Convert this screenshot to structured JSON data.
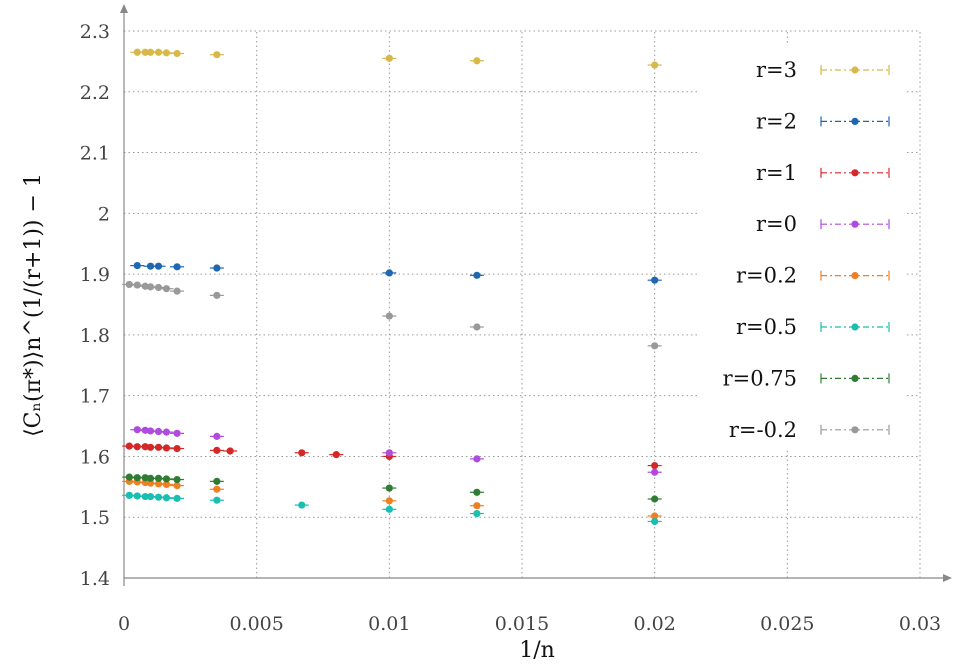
{
  "chart_data": {
    "type": "scatter",
    "xlabel": "1/n",
    "ylabel": "⟨Cₙ(π*)⟩n^(1/(r+1)) − 1",
    "xlim": [
      0,
      0.03
    ],
    "ylim": [
      1.4,
      2.3
    ],
    "xticks": [
      "0",
      "0.005",
      "0.01",
      "0.015",
      "0.02",
      "0.025",
      "0.03"
    ],
    "yticks": [
      "1.4",
      "1.5",
      "1.6",
      "1.7",
      "1.8",
      "1.9",
      "2",
      "2.1",
      "2.2",
      "2.3"
    ],
    "grid": true,
    "legend_position": "right",
    "series": [
      {
        "name": "r=3",
        "color": "#d9b84a",
        "x": [
          0.0005,
          0.0008,
          0.001,
          0.0013,
          0.0016,
          0.002,
          0.0035,
          0.01,
          0.0133,
          0.02
        ],
        "y": [
          2.265,
          2.265,
          2.265,
          2.265,
          2.264,
          2.263,
          2.261,
          2.255,
          2.251,
          2.244
        ]
      },
      {
        "name": "r=2",
        "color": "#1f67b1",
        "x": [
          0.0005,
          0.001,
          0.0013,
          0.002,
          0.0035,
          0.01,
          0.0133,
          0.02
        ],
        "y": [
          1.914,
          1.913,
          1.913,
          1.912,
          1.91,
          1.902,
          1.898,
          1.89
        ]
      },
      {
        "name": "r=1",
        "color": "#d62728",
        "x": [
          0.0002,
          0.0005,
          0.0008,
          0.001,
          0.0013,
          0.0016,
          0.002,
          0.0035,
          0.004,
          0.0067,
          0.008,
          0.01,
          0.02
        ],
        "y": [
          1.617,
          1.616,
          1.616,
          1.615,
          1.615,
          1.614,
          1.613,
          1.61,
          1.609,
          1.606,
          1.603,
          1.6,
          1.585
        ]
      },
      {
        "name": "r=0",
        "color": "#b04be0",
        "x": [
          0.0005,
          0.0008,
          0.001,
          0.0013,
          0.0016,
          0.002,
          0.0035,
          0.01,
          0.0133,
          0.02
        ],
        "y": [
          1.644,
          1.643,
          1.642,
          1.641,
          1.64,
          1.638,
          1.633,
          1.606,
          1.596,
          1.574
        ]
      },
      {
        "name": "r=0.2",
        "color": "#f07f22",
        "x": [
          0.0002,
          0.0005,
          0.0008,
          0.001,
          0.0013,
          0.0016,
          0.002,
          0.0035,
          0.01,
          0.0133,
          0.02
        ],
        "y": [
          1.559,
          1.558,
          1.557,
          1.556,
          1.555,
          1.554,
          1.552,
          1.546,
          1.527,
          1.519,
          1.502
        ]
      },
      {
        "name": "r=0.5",
        "color": "#19bfb0",
        "x": [
          0.0002,
          0.0005,
          0.0008,
          0.001,
          0.0013,
          0.0016,
          0.002,
          0.0035,
          0.0067,
          0.01,
          0.0133,
          0.02
        ],
        "y": [
          1.536,
          1.535,
          1.534,
          1.534,
          1.533,
          1.532,
          1.531,
          1.528,
          1.52,
          1.513,
          1.506,
          1.493
        ]
      },
      {
        "name": "r=0.75",
        "color": "#2e7d32",
        "x": [
          0.0002,
          0.0005,
          0.0008,
          0.001,
          0.0013,
          0.0016,
          0.002,
          0.0035,
          0.01,
          0.0133,
          0.02
        ],
        "y": [
          1.566,
          1.565,
          1.565,
          1.564,
          1.564,
          1.563,
          1.562,
          1.559,
          1.548,
          1.541,
          1.53
        ]
      },
      {
        "name": "r=-0.2",
        "color": "#999999",
        "x": [
          0.0002,
          0.0005,
          0.0008,
          0.001,
          0.0013,
          0.0016,
          0.002,
          0.0035,
          0.01,
          0.0133,
          0.02
        ],
        "y": [
          1.883,
          1.882,
          1.88,
          1.879,
          1.878,
          1.876,
          1.872,
          1.865,
          1.831,
          1.813,
          1.782
        ]
      }
    ]
  }
}
